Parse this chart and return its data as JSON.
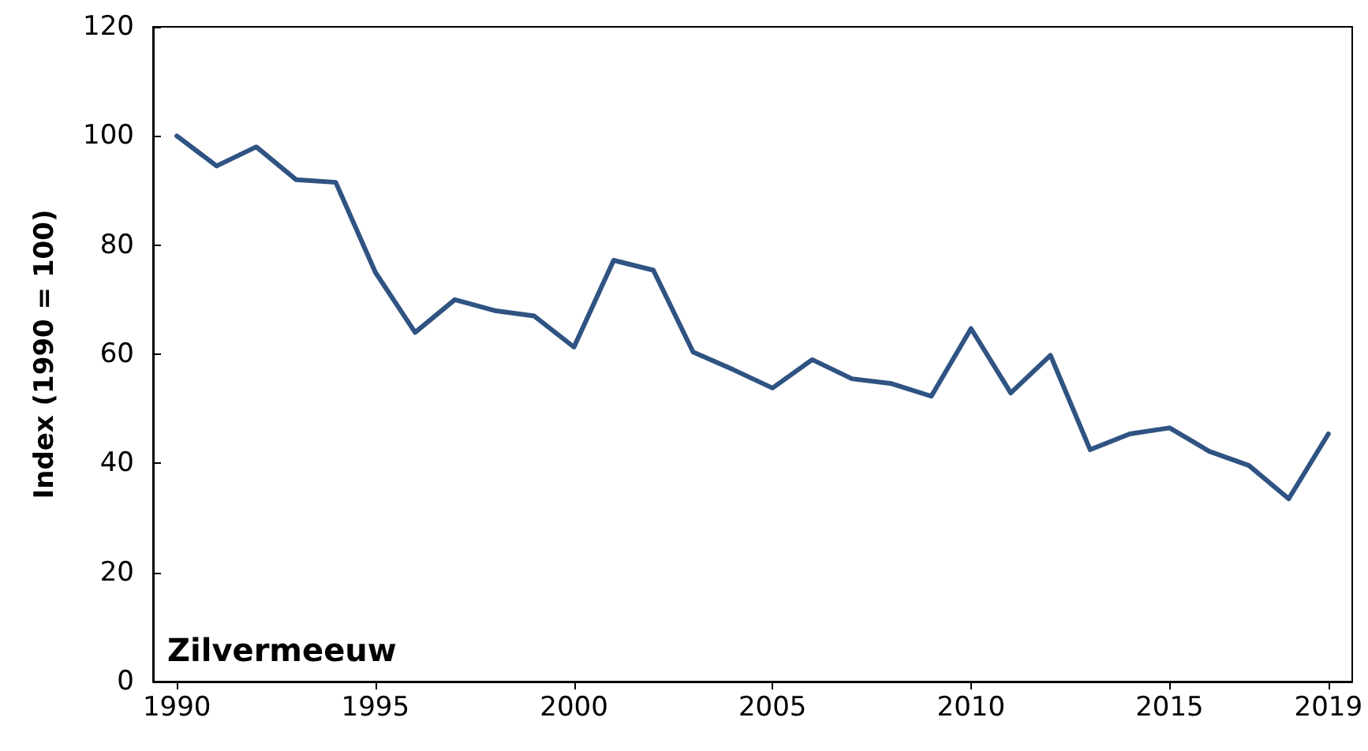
{
  "chart_data": {
    "type": "line",
    "ylabel": "Index (1990 = 100)",
    "annotations": [
      "Zilvermeeuw"
    ],
    "x": [
      1990,
      1991,
      1992,
      1993,
      1994,
      1995,
      1996,
      1997,
      1998,
      1999,
      2000,
      2001,
      2002,
      2003,
      2004,
      2005,
      2006,
      2007,
      2008,
      2009,
      2010,
      2011,
      2012,
      2013,
      2014,
      2015,
      2016,
      2017,
      2018,
      2019
    ],
    "series": [
      {
        "color": "#2f5382",
        "values": [
          100,
          94.5,
          98,
          92,
          91.5,
          75,
          64,
          70,
          68,
          67,
          61.3,
          77.2,
          75.4,
          60.4,
          57.2,
          53.8,
          59,
          55.5,
          54.6,
          52.3,
          64.7,
          52.9,
          59.8,
          42.5,
          45.4,
          46.5,
          42.2,
          39.6,
          33.5,
          45.4
        ]
      }
    ],
    "xlim": [
      1989.4,
      2019.6
    ],
    "xticks": [
      1990,
      1995,
      2000,
      2005,
      2010,
      2015,
      2019
    ],
    "ylim": [
      0,
      120
    ],
    "yticks": [
      0,
      20,
      40,
      60,
      80,
      100,
      120
    ],
    "marker": "none",
    "line_style": "solid"
  }
}
